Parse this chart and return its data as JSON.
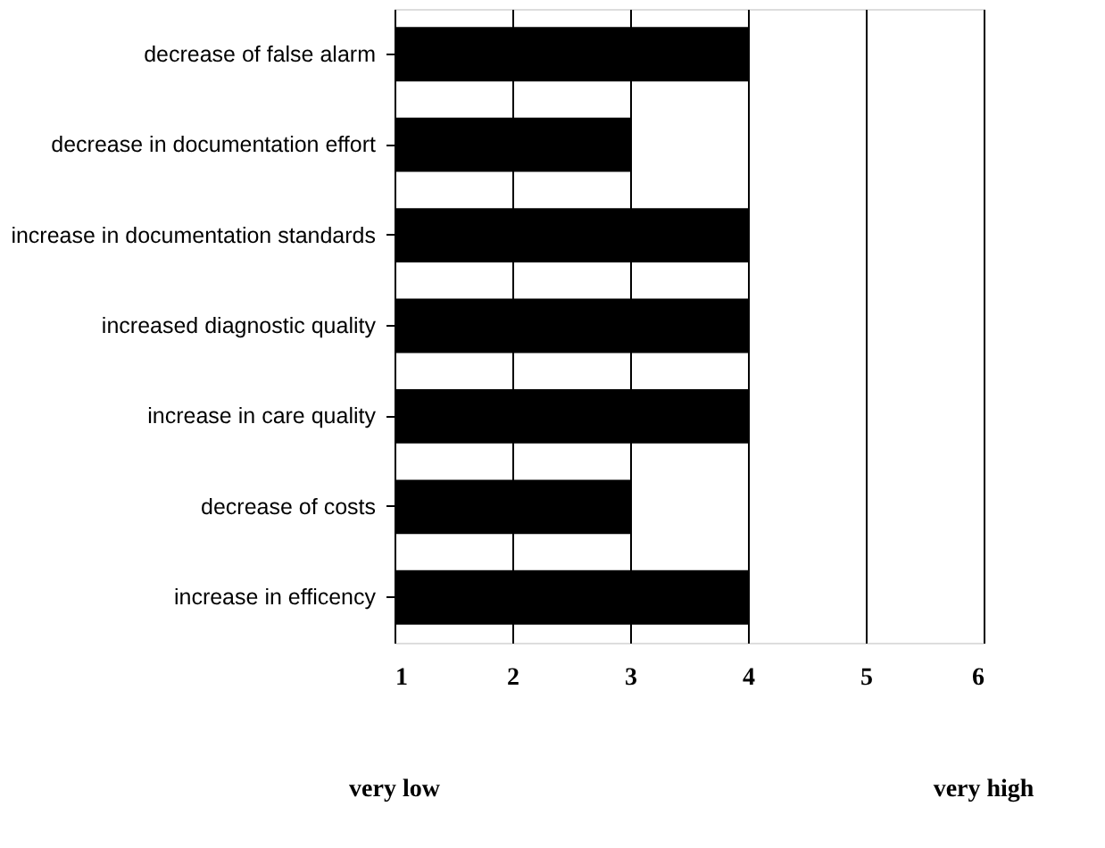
{
  "chart_data": {
    "type": "bar",
    "orientation": "horizontal",
    "categories": [
      "decrease of false alarm",
      "decrease in documentation effort",
      "increase in documentation standards",
      "increased diagnostic quality",
      "increase in care quality",
      "decrease of costs",
      "increase in efficency"
    ],
    "values": [
      4,
      3,
      4,
      4,
      4,
      3,
      4
    ],
    "color": "#000000",
    "xlim": [
      1,
      6
    ],
    "xticks": [
      1,
      2,
      3,
      4,
      5,
      6
    ],
    "grid": "x",
    "annotations": [
      "very low",
      "very high"
    ]
  }
}
